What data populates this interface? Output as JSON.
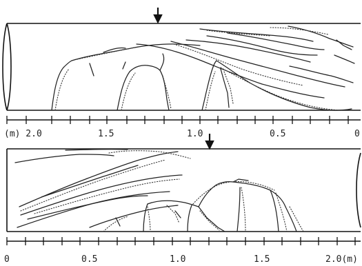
{
  "top_panel": {
    "scale_labels": [
      "(m) 2.0",
      "1.5",
      "1.0",
      "0.5",
      "0"
    ]
  },
  "bottom_panel": {
    "scale_labels": [
      "0",
      "0.5",
      "1.0",
      "1.5",
      "2.0(m)"
    ]
  }
}
